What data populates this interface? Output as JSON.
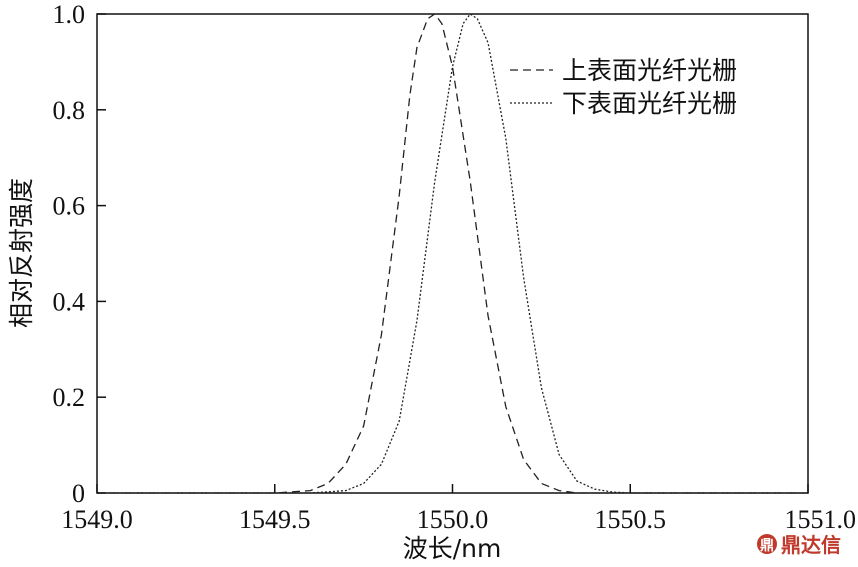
{
  "chart_data": {
    "type": "line",
    "xlabel": "波长/nm",
    "ylabel": "相对反射强度",
    "xlim": [
      1549.0,
      1551.0
    ],
    "ylim": [
      0,
      1.0
    ],
    "x_ticks": [
      "1549.0",
      "1549.5",
      "1550.0",
      "1550.5",
      "1551.0"
    ],
    "y_ticks": [
      "0",
      "0.2",
      "0.4",
      "0.6",
      "0.8",
      "1.0"
    ],
    "grid": false,
    "legend_position": "top-right",
    "series": [
      {
        "name": "上表面光纤光栅",
        "style": "dashed",
        "color": "#222222",
        "x": [
          1549.0,
          1549.5,
          1549.6,
          1549.65,
          1549.7,
          1549.75,
          1549.8,
          1549.85,
          1549.88,
          1549.9,
          1549.93,
          1549.95,
          1549.97,
          1550.0,
          1550.05,
          1550.1,
          1550.15,
          1550.2,
          1550.25,
          1550.3,
          1550.35,
          1551.0
        ],
        "y": [
          0.0,
          0.0,
          0.005,
          0.02,
          0.06,
          0.14,
          0.33,
          0.62,
          0.83,
          0.93,
          0.99,
          1.0,
          0.98,
          0.89,
          0.65,
          0.37,
          0.18,
          0.07,
          0.02,
          0.005,
          0.0,
          0.0
        ]
      },
      {
        "name": "下表面光纤光栅",
        "style": "dotted",
        "color": "#222222",
        "x": [
          1549.0,
          1549.6,
          1549.7,
          1549.75,
          1549.8,
          1549.85,
          1549.9,
          1549.95,
          1550.0,
          1550.03,
          1550.05,
          1550.07,
          1550.1,
          1550.15,
          1550.2,
          1550.25,
          1550.3,
          1550.35,
          1550.4,
          1550.45,
          1550.5,
          1551.0
        ],
        "y": [
          0.0,
          0.0,
          0.005,
          0.02,
          0.06,
          0.15,
          0.36,
          0.65,
          0.89,
          0.98,
          1.0,
          0.99,
          0.94,
          0.74,
          0.45,
          0.22,
          0.08,
          0.025,
          0.008,
          0.002,
          0.0,
          0.0
        ]
      }
    ]
  },
  "watermark": {
    "logo_icon": "dingdaxin-logo-icon",
    "text": "鼎达信",
    "color": "#c0392b"
  }
}
